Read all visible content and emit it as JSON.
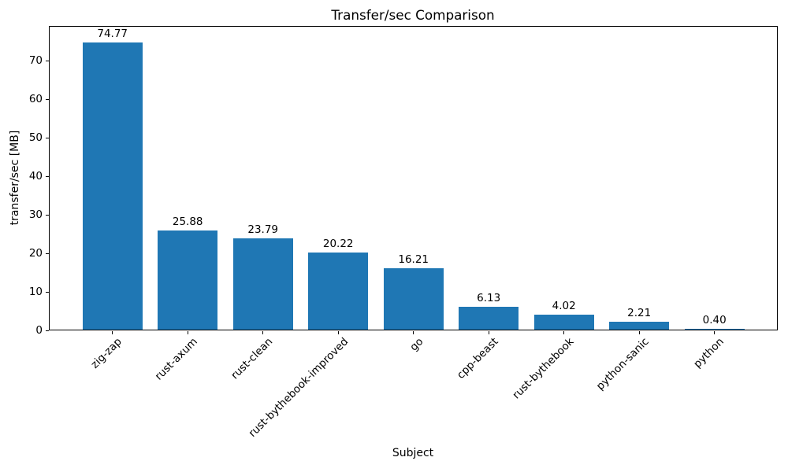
{
  "figure": {
    "background": "#ffffff",
    "text_color": "#000000"
  },
  "chart_data": {
    "type": "bar",
    "title": "Transfer/sec Comparison",
    "xlabel": "Subject",
    "ylabel": "transfer/sec [MB]",
    "categories": [
      "zig-zap",
      "rust-axum",
      "rust-clean",
      "rust-bythebook-improved",
      "go",
      "cpp-beast",
      "rust-bythebook",
      "python-sanic",
      "python"
    ],
    "values": [
      74.77,
      25.88,
      23.79,
      20.22,
      16.21,
      6.13,
      4.02,
      2.21,
      0.4
    ],
    "value_labels": [
      "74.77",
      "25.88",
      "23.79",
      "20.22",
      "16.21",
      "6.13",
      "4.02",
      "2.21",
      "0.40"
    ],
    "bar_color": "#1f77b4",
    "ylim": [
      0,
      79
    ],
    "yticks": [
      0,
      10,
      20,
      30,
      40,
      50,
      60,
      70
    ],
    "grid": false,
    "legend": "none",
    "x_tick_rotation_deg": 45
  }
}
